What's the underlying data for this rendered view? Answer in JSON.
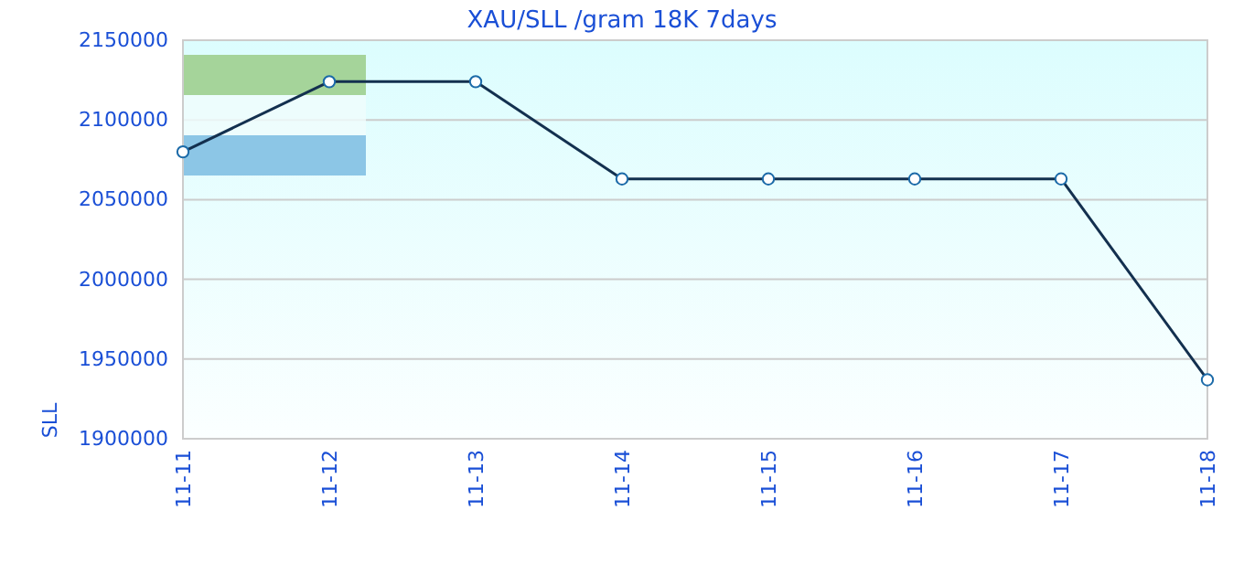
{
  "chart_data": {
    "type": "line",
    "title": "XAU/SLL /gram 18K 7days",
    "ylabel": "SLL",
    "categories": [
      "11-11",
      "11-12",
      "11-13",
      "11-14",
      "11-15",
      "11-16",
      "11-17",
      "11-18"
    ],
    "series": [
      {
        "color": "#13304f",
        "values": [
          2080000,
          2124000,
          2124000,
          2063000,
          2063000,
          2063000,
          2063000,
          1937000
        ]
      }
    ],
    "ylim": [
      1900000,
      2150000
    ],
    "yticks": [
      1900000,
      1950000,
      2000000,
      2050000,
      2100000,
      2150000
    ],
    "grid": "y",
    "marker": "circle",
    "line_style": "solid"
  }
}
